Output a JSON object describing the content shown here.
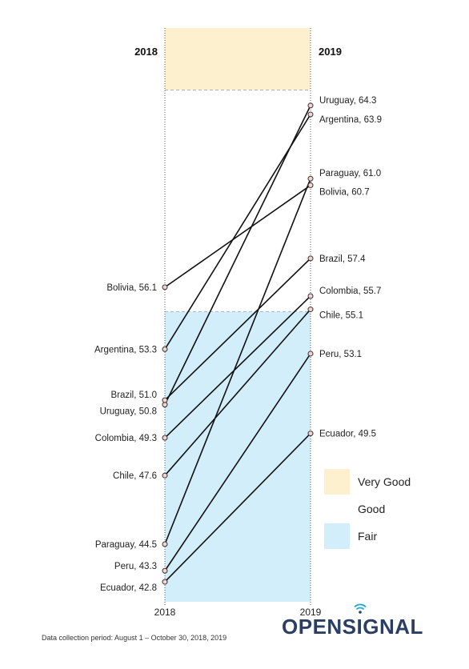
{
  "chart_data": {
    "type": "slope",
    "left_header": "2018",
    "right_header": "2019",
    "x_labels": [
      "2018",
      "2019"
    ],
    "ylim": [
      41.9,
      67.8
    ],
    "bands": [
      {
        "name": "Very Good",
        "from": 65.0,
        "to": 67.8,
        "color": "#fdf0cf"
      },
      {
        "name": "Good",
        "from": 55.0,
        "to": 65.0,
        "color": "#ffffff"
      },
      {
        "name": "Fair",
        "from": 41.9,
        "to": 55.0,
        "color": "#d3eefb"
      }
    ],
    "series": [
      {
        "name": "Uruguay",
        "left_label": "Uruguay, 50.8",
        "right_label": "Uruguay, 64.3",
        "values": [
          50.8,
          64.3
        ]
      },
      {
        "name": "Argentina",
        "left_label": "Argentina, 53.3",
        "right_label": "Argentina, 63.9",
        "values": [
          53.3,
          63.9
        ]
      },
      {
        "name": "Paraguay",
        "left_label": "Paraguay, 44.5",
        "right_label": "Paraguay, 61.0",
        "values": [
          44.5,
          61.0
        ]
      },
      {
        "name": "Bolivia",
        "left_label": "Bolivia, 56.1",
        "right_label": "Bolivia, 60.7",
        "values": [
          56.1,
          60.7
        ]
      },
      {
        "name": "Brazil",
        "left_label": "Brazil, 51.0",
        "right_label": "Brazil, 57.4",
        "values": [
          51.0,
          57.4
        ]
      },
      {
        "name": "Colombia",
        "left_label": "Colombia, 49.3",
        "right_label": "Colombia, 55.7",
        "values": [
          49.3,
          55.7
        ]
      },
      {
        "name": "Chile",
        "left_label": "Chile, 47.6",
        "right_label": "Chile, 55.1",
        "values": [
          47.6,
          55.1
        ]
      },
      {
        "name": "Peru",
        "left_label": "Peru, 43.3",
        "right_label": "Peru, 53.1",
        "values": [
          43.3,
          53.1
        ]
      },
      {
        "name": "Ecuador",
        "left_label": "Ecuador, 42.8",
        "right_label": "Ecuador, 49.5",
        "values": [
          42.8,
          49.5
        ]
      }
    ]
  },
  "legend": [
    {
      "label": "Very Good",
      "color": "#fdf0cf"
    },
    {
      "label": "Good",
      "color": "#ffffff"
    },
    {
      "label": "Fair",
      "color": "#d3eefb"
    }
  ],
  "footnote": "Data collection period: August 1 – October  30, 2018, 2019",
  "brand": {
    "part1": "OPENS",
    "part2": "I",
    "part3": "GNAL",
    "color": "#2b3e63"
  }
}
